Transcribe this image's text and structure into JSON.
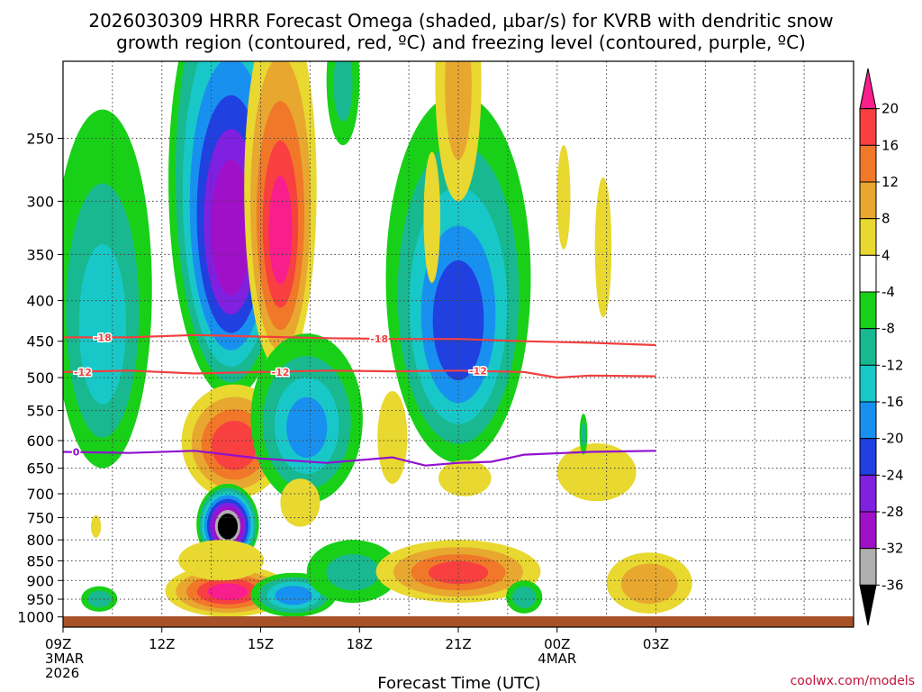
{
  "chart_data": {
    "type": "heatmap",
    "title_line1": "2026030309 HRRR Forecast Omega (shaded, µbar/s) for KVRB with dendritic snow",
    "title_line2": "growth region (contoured, red, ºC) and freezing level (contoured, purple, ºC)",
    "xlabel": "Forecast Time (UTC)",
    "credit": "coolwx.com/models",
    "x_range_hours": [
      0,
      24
    ],
    "x_ticks": [
      {
        "h": 0,
        "label": "09Z",
        "sub1": "3MAR",
        "sub2": "2026"
      },
      {
        "h": 3,
        "label": "12Z"
      },
      {
        "h": 6,
        "label": "15Z"
      },
      {
        "h": 9,
        "label": "18Z"
      },
      {
        "h": 12,
        "label": "21Z"
      },
      {
        "h": 15,
        "label": "00Z",
        "sub1": "4MAR"
      },
      {
        "h": 18,
        "label": "03Z"
      }
    ],
    "y_range_hpa": [
      200,
      1030
    ],
    "y_ticks": [
      {
        "p": 250,
        "label": "250"
      },
      {
        "p": 300,
        "label": "300"
      },
      {
        "p": 350,
        "label": "350"
      },
      {
        "p": 400,
        "label": "400"
      },
      {
        "p": 450,
        "label": "450"
      },
      {
        "p": 500,
        "label": "500"
      },
      {
        "p": 550,
        "label": "550"
      },
      {
        "p": 600,
        "label": "600"
      },
      {
        "p": 650,
        "label": "650"
      },
      {
        "p": 700,
        "label": "700"
      },
      {
        "p": 750,
        "label": "750"
      },
      {
        "p": 800,
        "label": "800"
      },
      {
        "p": 850,
        "label": "850"
      },
      {
        "p": 900,
        "label": "900"
      },
      {
        "p": 950,
        "label": "950"
      },
      {
        "p": 1000,
        "label": "1000"
      }
    ],
    "colorbar": {
      "levels": [
        20,
        16,
        12,
        8,
        4,
        -4,
        -8,
        -12,
        -16,
        -20,
        -24,
        -28,
        -32,
        -36
      ],
      "labels": [
        "20",
        "16",
        "12",
        "8",
        "4",
        "-4",
        "-8",
        "-12",
        "-16",
        "-20",
        "-24",
        "-28",
        "-32",
        "-36"
      ],
      "colors": [
        "#f81e8c",
        "#f84040",
        "#f07828",
        "#e8a830",
        "#e8d830",
        "#ffffff",
        "#18d018",
        "#18b890",
        "#18c8c8",
        "#1890f0",
        "#2040e0",
        "#8020e0",
        "#a010c8",
        "#b0b0b0",
        "#000000"
      ]
    },
    "contours": [
      {
        "name": "dgz-minus-18",
        "label": "-18",
        "color": "#f04040",
        "points": [
          [
            0,
            445
          ],
          [
            2,
            445
          ],
          [
            4,
            442
          ],
          [
            6,
            444
          ],
          [
            8,
            446
          ],
          [
            10,
            447
          ],
          [
            12,
            447
          ],
          [
            14,
            450
          ],
          [
            16,
            452
          ],
          [
            18,
            455
          ]
        ],
        "label_at": [
          [
            1.2,
            445
          ],
          [
            9.6,
            447
          ]
        ]
      },
      {
        "name": "dgz-minus-12",
        "label": "-12",
        "color": "#f04040",
        "points": [
          [
            0,
            492
          ],
          [
            2,
            490
          ],
          [
            4,
            494
          ],
          [
            6,
            492
          ],
          [
            8,
            490
          ],
          [
            10,
            491
          ],
          [
            12,
            490
          ],
          [
            14,
            492
          ],
          [
            15,
            500
          ],
          [
            16,
            497
          ],
          [
            18,
            498
          ]
        ],
        "label_at": [
          [
            0.6,
            492
          ],
          [
            6.6,
            492
          ],
          [
            12.6,
            490
          ]
        ]
      },
      {
        "name": "freezing-level-0",
        "label": "0",
        "color": "#9010d0",
        "points": [
          [
            0,
            620
          ],
          [
            2,
            622
          ],
          [
            4,
            618
          ],
          [
            6,
            632
          ],
          [
            8,
            640
          ],
          [
            10,
            630
          ],
          [
            11,
            645
          ],
          [
            12,
            640
          ],
          [
            13,
            638
          ],
          [
            14,
            625
          ],
          [
            16,
            620
          ],
          [
            18,
            618
          ]
        ],
        "label_at": [
          [
            0.4,
            620
          ]
        ]
      }
    ],
    "omega_cells": [
      {
        "h": 1.2,
        "p": 440,
        "rh": 1.5,
        "rp": 210,
        "v": -13
      },
      {
        "h": 1.1,
        "p": 950,
        "rh": 0.55,
        "rp": 35,
        "v": -10
      },
      {
        "h": 5.1,
        "p": 330,
        "rh": 1.9,
        "rp": 200,
        "v": -30
      },
      {
        "h": 6.6,
        "p": 330,
        "rh": 1.1,
        "rp": 160,
        "v": 20
      },
      {
        "h": 5.2,
        "p": 610,
        "rh": 1.6,
        "rp": 100,
        "v": 18
      },
      {
        "h": 5.0,
        "p": 770,
        "rh": 0.95,
        "rp": 90,
        "v": -40
      },
      {
        "h": 5.0,
        "p": 930,
        "rh": 1.9,
        "rp": 70,
        "v": 20
      },
      {
        "h": 4.8,
        "p": 850,
        "rh": 1.3,
        "rp": 50,
        "v": 6
      },
      {
        "h": 7.4,
        "p": 580,
        "rh": 1.7,
        "rp": 140,
        "v": -16
      },
      {
        "h": 7.0,
        "p": 940,
        "rh": 1.3,
        "rp": 60,
        "v": -18
      },
      {
        "h": 8.8,
        "p": 880,
        "rh": 1.4,
        "rp": 80,
        "v": -8
      },
      {
        "h": 12.0,
        "p": 430,
        "rh": 2.2,
        "rp": 210,
        "v": -21
      },
      {
        "h": 12.0,
        "p": 880,
        "rh": 2.5,
        "rp": 80,
        "v": 16
      },
      {
        "h": 12.0,
        "p": 220,
        "rh": 0.7,
        "rp": 80,
        "v": 8
      },
      {
        "h": 12.2,
        "p": 670,
        "rh": 0.8,
        "rp": 35,
        "v": 6
      },
      {
        "h": 16.2,
        "p": 660,
        "rh": 1.2,
        "rp": 55,
        "v": 4
      },
      {
        "h": 17.8,
        "p": 910,
        "rh": 1.3,
        "rp": 80,
        "v": 10
      },
      {
        "h": 14.0,
        "p": 945,
        "rh": 0.55,
        "rp": 45,
        "v": -10
      },
      {
        "h": 15.8,
        "p": 590,
        "rh": 0.12,
        "rp": 35,
        "v": -8
      },
      {
        "h": 16.4,
        "p": 350,
        "rh": 0.25,
        "rp": 70,
        "v": 4
      },
      {
        "h": 11.2,
        "p": 320,
        "rh": 0.25,
        "rp": 60,
        "v": 4
      },
      {
        "h": 15.2,
        "p": 300,
        "rh": 0.2,
        "rp": 45,
        "v": 4
      },
      {
        "h": 10.0,
        "p": 600,
        "rh": 0.45,
        "rp": 80,
        "v": 4
      },
      {
        "h": 7.2,
        "p": 720,
        "rh": 0.6,
        "rp": 50,
        "v": 4
      },
      {
        "h": 8.5,
        "p": 215,
        "rh": 0.5,
        "rp": 40,
        "v": -8
      },
      {
        "h": 1.0,
        "p": 770,
        "rh": 0.15,
        "rp": 25,
        "v": 4
      }
    ]
  }
}
